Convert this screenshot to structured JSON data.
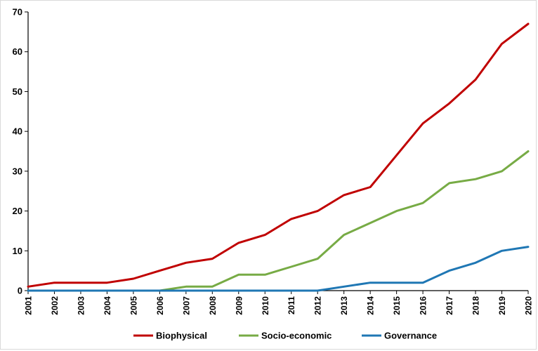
{
  "chart_data": {
    "type": "line",
    "title": "",
    "xlabel": "",
    "ylabel": "",
    "ylim": [
      0,
      70
    ],
    "yticks": [
      0,
      10,
      20,
      30,
      40,
      50,
      60,
      70
    ],
    "grid": false,
    "legend_position": "bottom",
    "categories": [
      "2001",
      "2002",
      "2003",
      "2004",
      "2005",
      "2006",
      "2007",
      "2008",
      "2009",
      "2010",
      "2011",
      "2012",
      "2013",
      "2014",
      "2015",
      "2016",
      "2017",
      "2018",
      "2019",
      "2020"
    ],
    "series": [
      {
        "name": "Biophysical",
        "color": "#c00000",
        "values": [
          1,
          2,
          2,
          2,
          3,
          5,
          7,
          8,
          12,
          14,
          18,
          20,
          24,
          26,
          34,
          42,
          47,
          53,
          62,
          67
        ]
      },
      {
        "name": "Socio-economic",
        "color": "#77ab45",
        "values": [
          0,
          0,
          0,
          0,
          0,
          0,
          1,
          1,
          4,
          4,
          6,
          8,
          14,
          17,
          20,
          22,
          27,
          28,
          30,
          35
        ]
      },
      {
        "name": "Governance",
        "color": "#1f77b4",
        "values": [
          0,
          0,
          0,
          0,
          0,
          0,
          0,
          0,
          0,
          0,
          0,
          0,
          1,
          2,
          2,
          2,
          5,
          7,
          10,
          11
        ]
      }
    ]
  }
}
